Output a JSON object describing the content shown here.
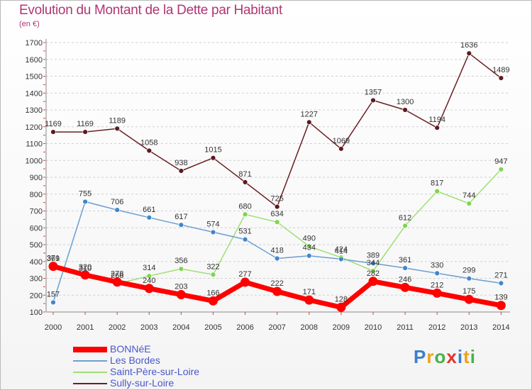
{
  "title": "Evolution du Montant de la Dette par Habitant",
  "unit_label": "(en €)",
  "chart_data": {
    "type": "line",
    "title": "Evolution du Montant de la Dette par Habitant",
    "ylabel": "(en €)",
    "xlabel": "",
    "x": [
      "2000",
      "2001",
      "2002",
      "2003",
      "2004",
      "2005",
      "2006",
      "2007",
      "2008",
      "2009",
      "2010",
      "2011",
      "2012",
      "2013",
      "2014"
    ],
    "ylim": [
      100,
      1700
    ],
    "yticks": [
      100,
      200,
      300,
      400,
      500,
      600,
      700,
      800,
      900,
      1000,
      1100,
      1200,
      1300,
      1400,
      1500,
      1600,
      1700
    ],
    "grid": "horizontal dashed",
    "legend_position": "bottom-left",
    "series": [
      {
        "name": "Sully-sur-Loire",
        "color": "#6b1f24",
        "point_color": "#5c1a1f",
        "values": [
          1169,
          1169,
          1189,
          1058,
          938,
          1015,
          871,
          725,
          1227,
          1069,
          1357,
          1300,
          1194,
          1636,
          1489
        ]
      },
      {
        "name": "Saint-Père-sur-Loire",
        "color": "#9fdf75",
        "point_color": "#7ed64a",
        "values": [
          369,
          310,
          268,
          314,
          356,
          322,
          680,
          634,
          490,
          424,
          344,
          612,
          817,
          744,
          947
        ]
      },
      {
        "name": "Les Bordes",
        "color": "#6a9fd3",
        "point_color": "#3f86cc",
        "values": [
          157,
          755,
          706,
          661,
          617,
          574,
          531,
          418,
          434,
          414,
          389,
          361,
          330,
          299,
          271
        ]
      },
      {
        "name": "BONNéE",
        "color": "#ff0000",
        "point_color": "#ff0000",
        "values": [
          371,
          320,
          278,
          240,
          203,
          166,
          277,
          222,
          171,
          128,
          282,
          246,
          212,
          175,
          139
        ]
      }
    ]
  },
  "legend": [
    {
      "label": "BONNéE",
      "color": "#ff0000"
    },
    {
      "label": "Les Bordes",
      "color": "#6a9fd3"
    },
    {
      "label": "Saint-Père-sur-Loire",
      "color": "#9fdf75"
    },
    {
      "label": "Sully-sur-Loire",
      "color": "#6b1f24"
    }
  ],
  "logo": {
    "text": "Proxiti",
    "colors": [
      "#3b7fd0",
      "#f0a11c",
      "#4bb04a",
      "#e5322d",
      "#3b7fd0",
      "#f0a11c",
      "#4bb04a"
    ]
  }
}
